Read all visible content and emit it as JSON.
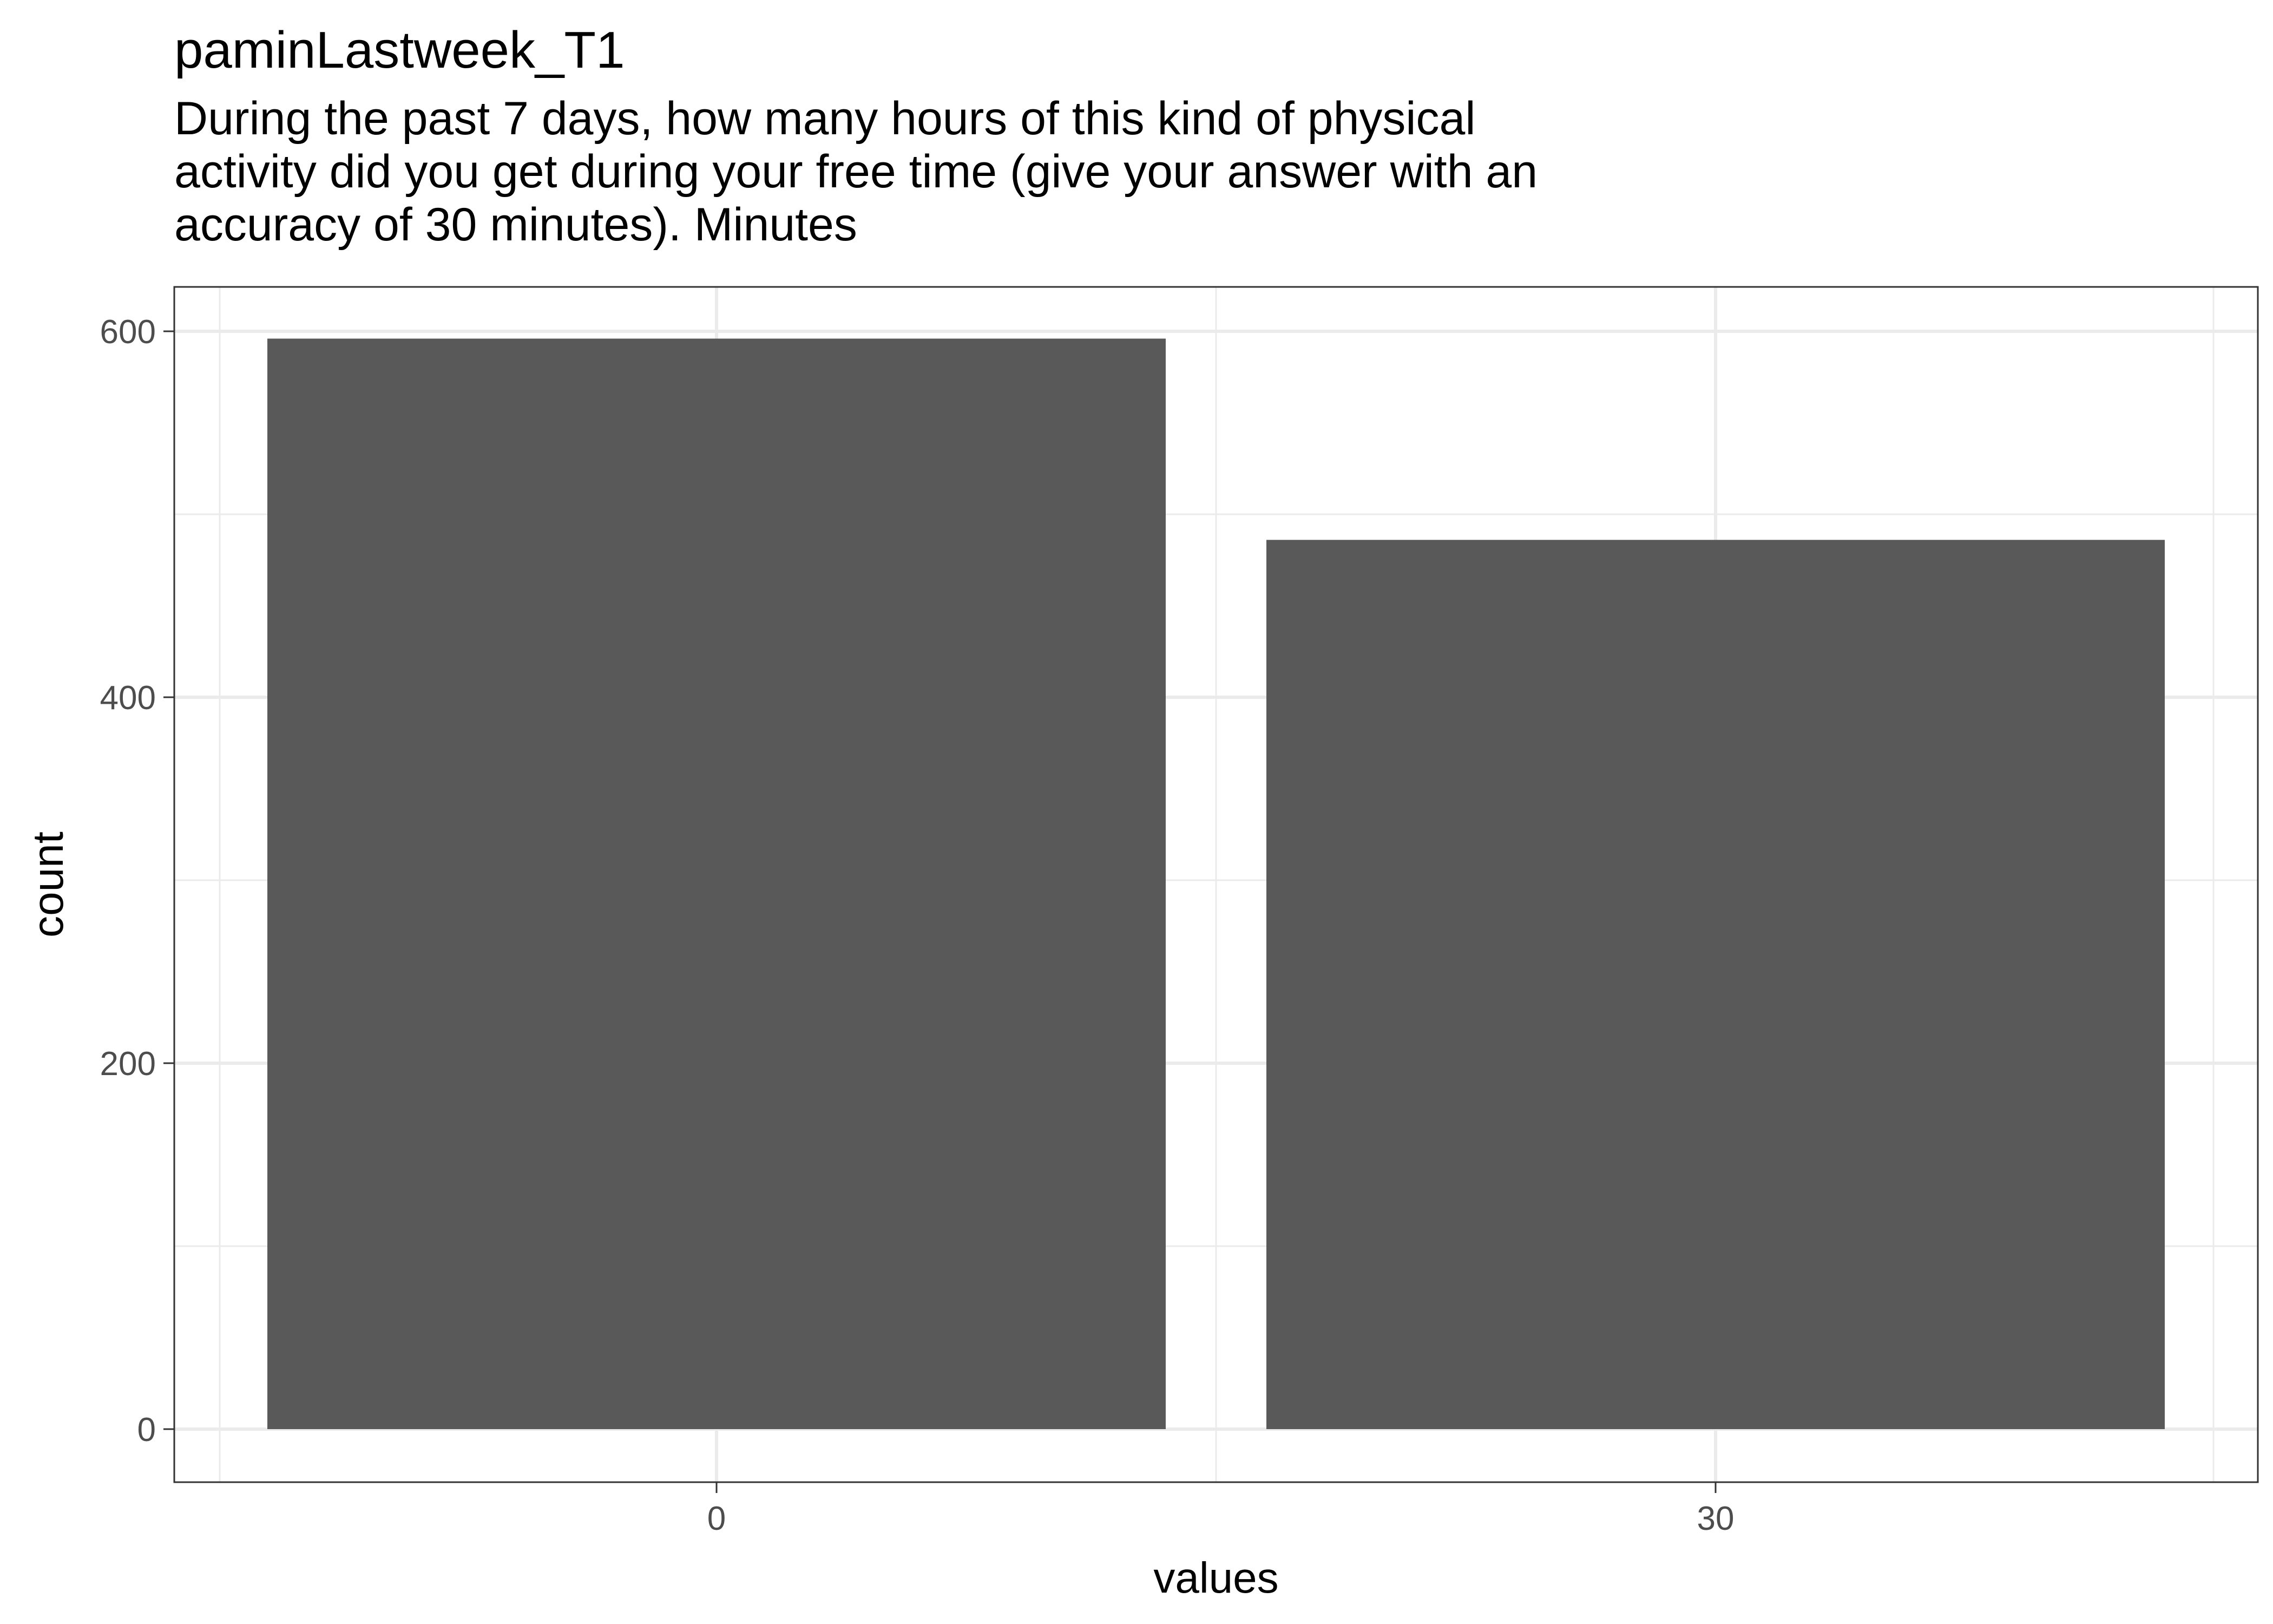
{
  "chart_data": {
    "type": "bar",
    "title": "paminLastweek_T1",
    "subtitle": "During the past 7 days, how many hours of this kind of physical\nactivity did you get during your free time (give your answer with an\naccuracy of 30 minutes). Minutes",
    "xlabel": "values",
    "ylabel": "count",
    "categories": [
      "0",
      "30"
    ],
    "values": [
      596,
      486
    ],
    "ylim": [
      0,
      600
    ],
    "yticks": [
      0,
      200,
      400,
      600
    ],
    "grid": true,
    "bar_color": "#595959",
    "grid_color": "#ebebeb",
    "panel_border_color": "#333333"
  }
}
